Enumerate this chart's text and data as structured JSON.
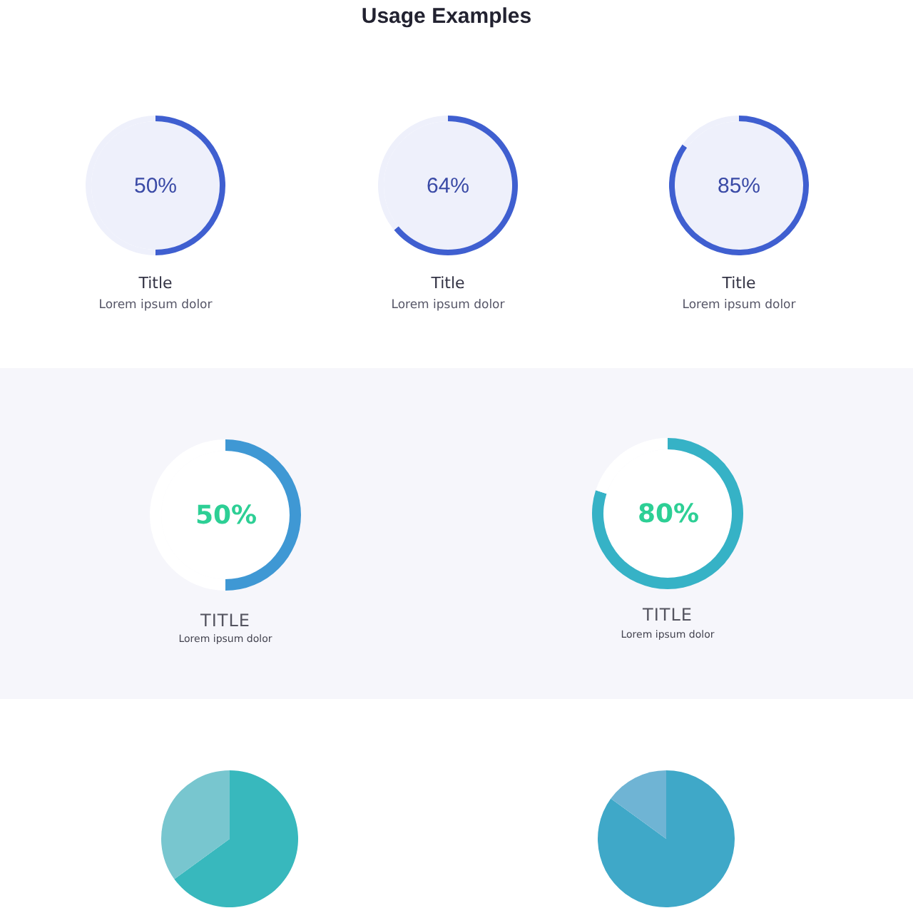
{
  "chart_data": [
    {
      "type": "other",
      "title": "Usage Examples"
    },
    {
      "type": "donut",
      "title": "Title",
      "subtitle": "Lorem ipsum dolor",
      "categories": [
        null,
        null
      ],
      "values": [
        50,
        50
      ],
      "colors": [
        "#3f5fd0",
        "#eef0fb"
      ],
      "annotations": [
        "50%"
      ]
    },
    {
      "type": "donut",
      "title": "Title",
      "subtitle": "Lorem ipsum dolor",
      "categories": [
        null,
        null
      ],
      "values": [
        64,
        36
      ],
      "colors": [
        "#3f5fd0",
        "#eef0fb"
      ],
      "annotations": [
        "64%"
      ]
    },
    {
      "type": "donut",
      "title": "Title",
      "subtitle": "Lorem ipsum dolor",
      "categories": [
        null,
        null
      ],
      "values": [
        85,
        15
      ],
      "colors": [
        "#3f5fd0",
        "#eef0fb"
      ],
      "annotations": [
        "85%"
      ]
    },
    {
      "type": "donut",
      "title": "TITLE",
      "subtitle": "Lorem ipsum dolor",
      "categories": [
        null,
        null
      ],
      "values": [
        50,
        50
      ],
      "colors": [
        "#3f98d4",
        "#ffffff"
      ],
      "annotations": [
        "50%"
      ]
    },
    {
      "type": "donut",
      "title": "TITLE",
      "subtitle": "Lorem ipsum dolor",
      "categories": [
        null,
        null
      ],
      "values": [
        80,
        20
      ],
      "colors": [
        "#36b2c6",
        "#ffffff"
      ],
      "annotations": [
        "80%"
      ]
    },
    {
      "type": "pie",
      "categories": [
        null,
        null
      ],
      "values": [
        65,
        35
      ],
      "colors": [
        "#38b8bd",
        "#78c6cf"
      ]
    },
    {
      "type": "pie",
      "categories": [
        null,
        null
      ],
      "values": [
        85,
        15
      ],
      "colors": [
        "#3fa8c8",
        "#6fb4d4"
      ]
    }
  ]
}
